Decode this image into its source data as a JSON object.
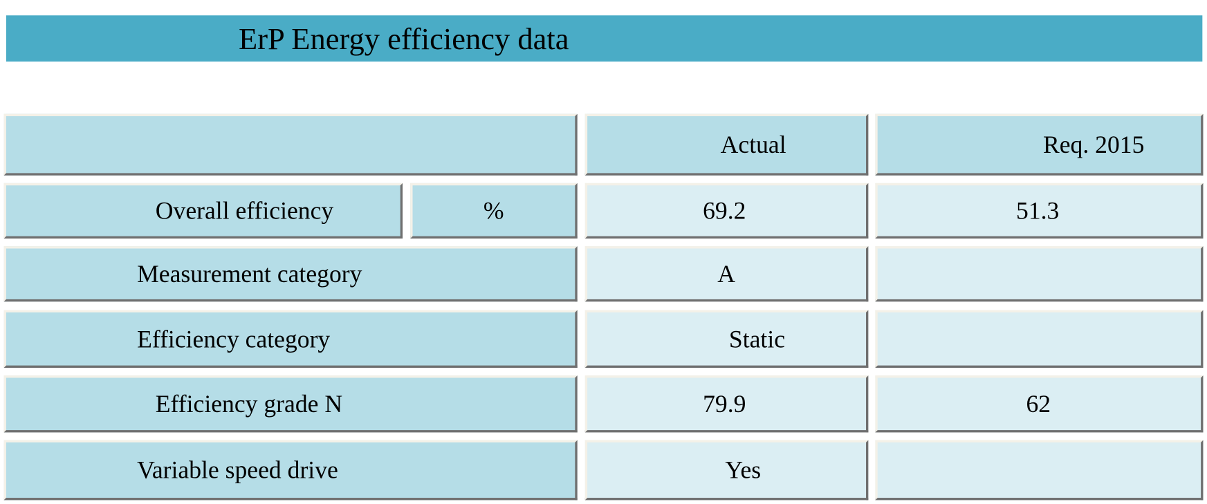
{
  "title": "ErP Energy efficiency data",
  "table": {
    "header": [
      "Actual",
      "Req. 2015"
    ],
    "rows": [
      {
        "label": "Overall efficiency",
        "unit": "%",
        "actual": "69.2",
        "required": "51.3"
      },
      {
        "label": "Measurement category",
        "actual": "A"
      },
      {
        "label": "Efficiency category",
        "actual": "Static"
      },
      {
        "label": "Efficiency grade N",
        "actual": "79.9",
        "required": "62"
      },
      {
        "label": "Variable speed drive",
        "actual": "Yes"
      }
    ]
  }
}
